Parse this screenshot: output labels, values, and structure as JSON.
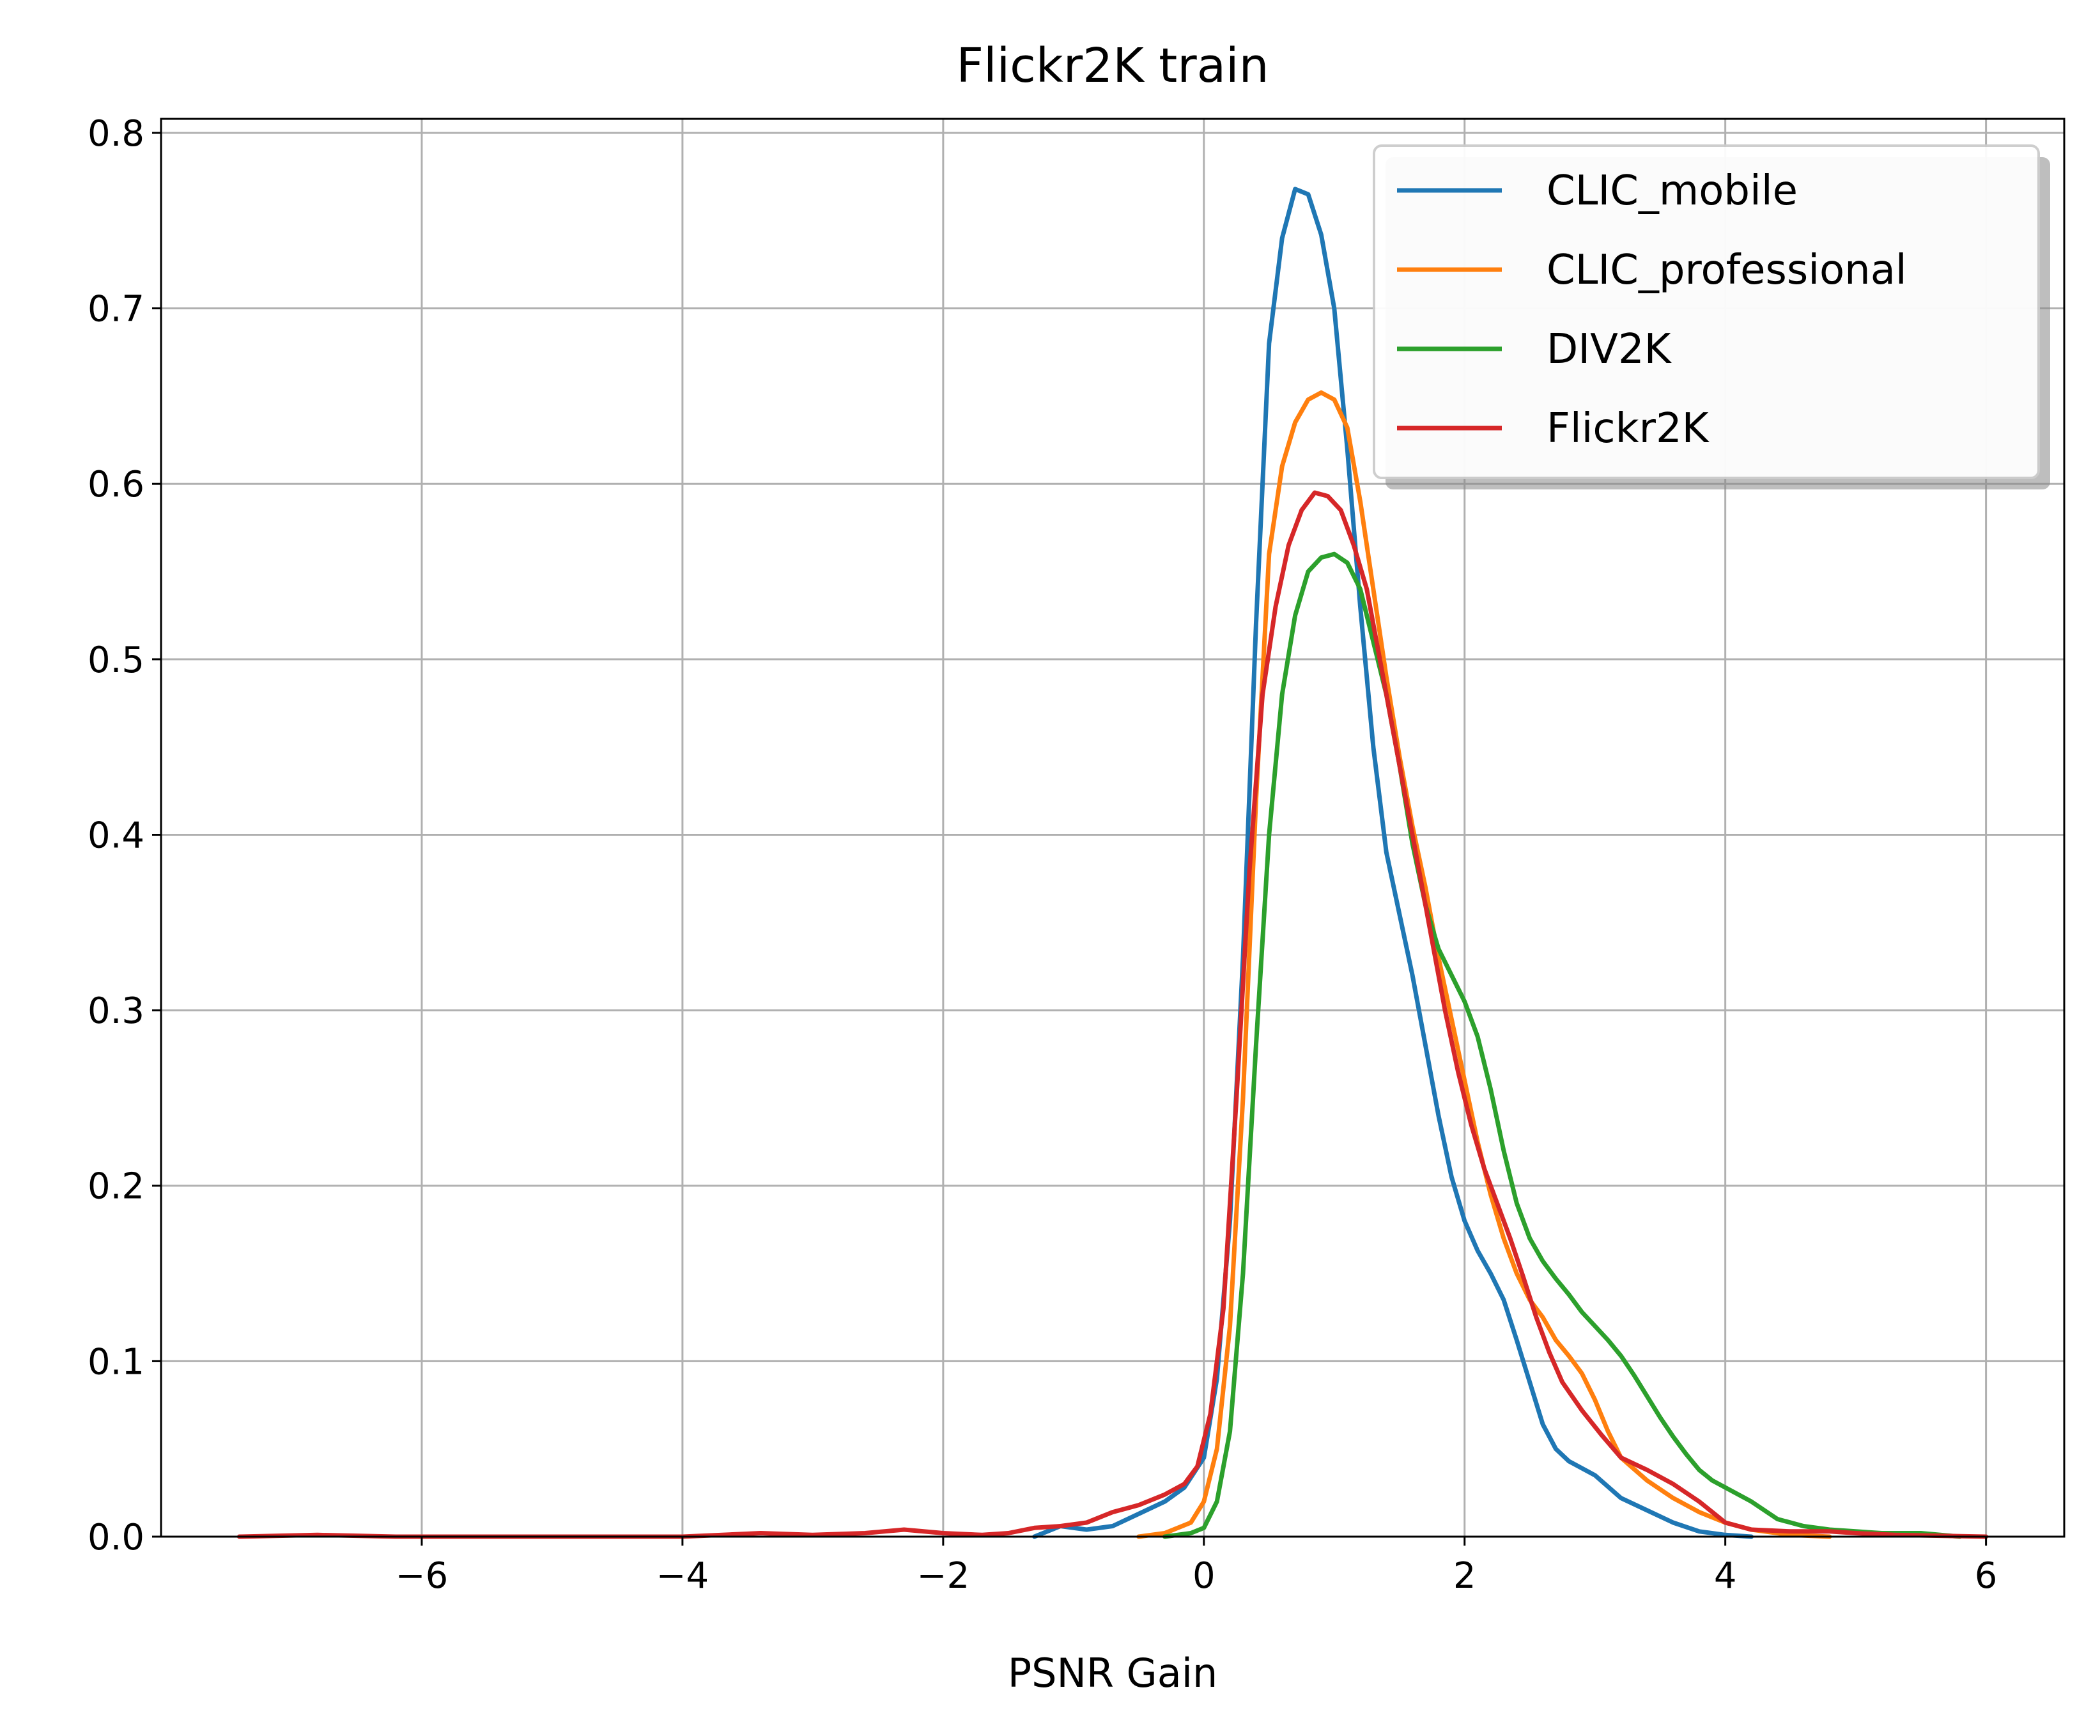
{
  "chart_data": {
    "type": "line",
    "title": "Flickr2K train",
    "xlabel": "PSNR Gain",
    "ylabel": "",
    "xlim": [
      -8,
      6.6
    ],
    "ylim": [
      0,
      0.808
    ],
    "x_ticks": [
      -6,
      -4,
      -2,
      0,
      2,
      4,
      6
    ],
    "x_tick_labels": [
      "−6",
      "−4",
      "−2",
      "0",
      "2",
      "4",
      "6"
    ],
    "y_ticks": [
      0.0,
      0.1,
      0.2,
      0.3,
      0.4,
      0.5,
      0.6,
      0.7,
      0.8
    ],
    "y_tick_labels": [
      "0.0",
      "0.1",
      "0.2",
      "0.3",
      "0.4",
      "0.5",
      "0.6",
      "0.7",
      "0.8"
    ],
    "grid": true,
    "legend_position": "top-right",
    "series": [
      {
        "name": "CLIC_mobile",
        "color": "#1f77b4",
        "points": [
          [
            -1.3,
            0.0
          ],
          [
            -1.1,
            0.006
          ],
          [
            -0.9,
            0.004
          ],
          [
            -0.7,
            0.006
          ],
          [
            -0.5,
            0.013
          ],
          [
            -0.3,
            0.02
          ],
          [
            -0.15,
            0.028
          ],
          [
            0.0,
            0.045
          ],
          [
            0.1,
            0.09
          ],
          [
            0.2,
            0.18
          ],
          [
            0.3,
            0.33
          ],
          [
            0.4,
            0.52
          ],
          [
            0.5,
            0.68
          ],
          [
            0.6,
            0.74
          ],
          [
            0.7,
            0.768
          ],
          [
            0.8,
            0.765
          ],
          [
            0.9,
            0.742
          ],
          [
            1.0,
            0.7
          ],
          [
            1.1,
            0.62
          ],
          [
            1.2,
            0.53
          ],
          [
            1.3,
            0.45
          ],
          [
            1.4,
            0.39
          ],
          [
            1.5,
            0.355
          ],
          [
            1.6,
            0.32
          ],
          [
            1.7,
            0.28
          ],
          [
            1.8,
            0.24
          ],
          [
            1.9,
            0.205
          ],
          [
            2.0,
            0.18
          ],
          [
            2.1,
            0.163
          ],
          [
            2.2,
            0.15
          ],
          [
            2.3,
            0.135
          ],
          [
            2.4,
            0.112
          ],
          [
            2.5,
            0.088
          ],
          [
            2.6,
            0.064
          ],
          [
            2.7,
            0.05
          ],
          [
            2.8,
            0.043
          ],
          [
            3.0,
            0.035
          ],
          [
            3.2,
            0.022
          ],
          [
            3.4,
            0.015
          ],
          [
            3.6,
            0.008
          ],
          [
            3.8,
            0.003
          ],
          [
            4.0,
            0.001
          ],
          [
            4.2,
            0.0
          ]
        ]
      },
      {
        "name": "CLIC_professional",
        "color": "#ff7f0e",
        "points": [
          [
            -0.5,
            0.0
          ],
          [
            -0.3,
            0.002
          ],
          [
            -0.1,
            0.008
          ],
          [
            0.0,
            0.02
          ],
          [
            0.1,
            0.05
          ],
          [
            0.2,
            0.12
          ],
          [
            0.3,
            0.25
          ],
          [
            0.4,
            0.42
          ],
          [
            0.5,
            0.56
          ],
          [
            0.6,
            0.61
          ],
          [
            0.7,
            0.635
          ],
          [
            0.8,
            0.648
          ],
          [
            0.9,
            0.652
          ],
          [
            1.0,
            0.648
          ],
          [
            1.1,
            0.632
          ],
          [
            1.2,
            0.59
          ],
          [
            1.3,
            0.54
          ],
          [
            1.4,
            0.49
          ],
          [
            1.5,
            0.445
          ],
          [
            1.6,
            0.405
          ],
          [
            1.7,
            0.37
          ],
          [
            1.8,
            0.33
          ],
          [
            1.9,
            0.295
          ],
          [
            2.0,
            0.26
          ],
          [
            2.1,
            0.225
          ],
          [
            2.2,
            0.195
          ],
          [
            2.3,
            0.17
          ],
          [
            2.4,
            0.15
          ],
          [
            2.5,
            0.135
          ],
          [
            2.6,
            0.125
          ],
          [
            2.7,
            0.112
          ],
          [
            2.8,
            0.103
          ],
          [
            2.9,
            0.093
          ],
          [
            3.0,
            0.078
          ],
          [
            3.1,
            0.06
          ],
          [
            3.2,
            0.045
          ],
          [
            3.4,
            0.032
          ],
          [
            3.6,
            0.022
          ],
          [
            3.8,
            0.014
          ],
          [
            4.0,
            0.008
          ],
          [
            4.2,
            0.004
          ],
          [
            4.5,
            0.001
          ],
          [
            4.8,
            0.0
          ]
        ]
      },
      {
        "name": "DIV2K",
        "color": "#2ca02c",
        "points": [
          [
            -0.3,
            0.0
          ],
          [
            -0.1,
            0.002
          ],
          [
            0.0,
            0.005
          ],
          [
            0.1,
            0.02
          ],
          [
            0.2,
            0.06
          ],
          [
            0.3,
            0.15
          ],
          [
            0.4,
            0.28
          ],
          [
            0.5,
            0.4
          ],
          [
            0.6,
            0.48
          ],
          [
            0.7,
            0.525
          ],
          [
            0.8,
            0.55
          ],
          [
            0.9,
            0.558
          ],
          [
            1.0,
            0.56
          ],
          [
            1.1,
            0.555
          ],
          [
            1.2,
            0.54
          ],
          [
            1.3,
            0.51
          ],
          [
            1.4,
            0.48
          ],
          [
            1.5,
            0.44
          ],
          [
            1.6,
            0.395
          ],
          [
            1.7,
            0.36
          ],
          [
            1.8,
            0.335
          ],
          [
            1.9,
            0.32
          ],
          [
            2.0,
            0.305
          ],
          [
            2.1,
            0.285
          ],
          [
            2.2,
            0.255
          ],
          [
            2.3,
            0.22
          ],
          [
            2.4,
            0.19
          ],
          [
            2.5,
            0.17
          ],
          [
            2.6,
            0.157
          ],
          [
            2.7,
            0.147
          ],
          [
            2.8,
            0.138
          ],
          [
            2.9,
            0.128
          ],
          [
            3.0,
            0.12
          ],
          [
            3.1,
            0.112
          ],
          [
            3.2,
            0.103
          ],
          [
            3.3,
            0.092
          ],
          [
            3.4,
            0.08
          ],
          [
            3.5,
            0.068
          ],
          [
            3.6,
            0.057
          ],
          [
            3.7,
            0.047
          ],
          [
            3.8,
            0.038
          ],
          [
            3.9,
            0.032
          ],
          [
            4.0,
            0.028
          ],
          [
            4.2,
            0.02
          ],
          [
            4.4,
            0.01
          ],
          [
            4.6,
            0.006
          ],
          [
            4.8,
            0.004
          ],
          [
            5.0,
            0.003
          ],
          [
            5.2,
            0.002
          ],
          [
            5.5,
            0.002
          ],
          [
            5.8,
            0.0
          ]
        ]
      },
      {
        "name": "Flickr2K",
        "color": "#d62728",
        "points": [
          [
            -7.4,
            0.0
          ],
          [
            -6.8,
            0.001
          ],
          [
            -6.2,
            0.0
          ],
          [
            -5.0,
            0.0
          ],
          [
            -4.0,
            0.0
          ],
          [
            -3.4,
            0.002
          ],
          [
            -3.0,
            0.001
          ],
          [
            -2.6,
            0.002
          ],
          [
            -2.3,
            0.004
          ],
          [
            -2.0,
            0.002
          ],
          [
            -1.7,
            0.001
          ],
          [
            -1.5,
            0.002
          ],
          [
            -1.3,
            0.005
          ],
          [
            -1.1,
            0.006
          ],
          [
            -0.9,
            0.008
          ],
          [
            -0.7,
            0.014
          ],
          [
            -0.5,
            0.018
          ],
          [
            -0.3,
            0.024
          ],
          [
            -0.15,
            0.03
          ],
          [
            -0.05,
            0.04
          ],
          [
            0.05,
            0.07
          ],
          [
            0.15,
            0.13
          ],
          [
            0.25,
            0.25
          ],
          [
            0.35,
            0.38
          ],
          [
            0.45,
            0.48
          ],
          [
            0.55,
            0.53
          ],
          [
            0.65,
            0.565
          ],
          [
            0.75,
            0.585
          ],
          [
            0.85,
            0.595
          ],
          [
            0.95,
            0.593
          ],
          [
            1.05,
            0.585
          ],
          [
            1.15,
            0.565
          ],
          [
            1.25,
            0.54
          ],
          [
            1.35,
            0.5
          ],
          [
            1.45,
            0.46
          ],
          [
            1.55,
            0.42
          ],
          [
            1.65,
            0.38
          ],
          [
            1.75,
            0.34
          ],
          [
            1.85,
            0.3
          ],
          [
            1.95,
            0.265
          ],
          [
            2.05,
            0.235
          ],
          [
            2.15,
            0.21
          ],
          [
            2.25,
            0.19
          ],
          [
            2.35,
            0.17
          ],
          [
            2.45,
            0.148
          ],
          [
            2.55,
            0.125
          ],
          [
            2.65,
            0.105
          ],
          [
            2.75,
            0.088
          ],
          [
            2.9,
            0.072
          ],
          [
            3.05,
            0.058
          ],
          [
            3.2,
            0.045
          ],
          [
            3.4,
            0.038
          ],
          [
            3.6,
            0.03
          ],
          [
            3.8,
            0.02
          ],
          [
            4.0,
            0.008
          ],
          [
            4.2,
            0.004
          ],
          [
            4.5,
            0.003
          ],
          [
            4.8,
            0.003
          ],
          [
            5.0,
            0.002
          ],
          [
            5.3,
            0.001
          ],
          [
            6.0,
            0.0
          ]
        ]
      }
    ]
  }
}
